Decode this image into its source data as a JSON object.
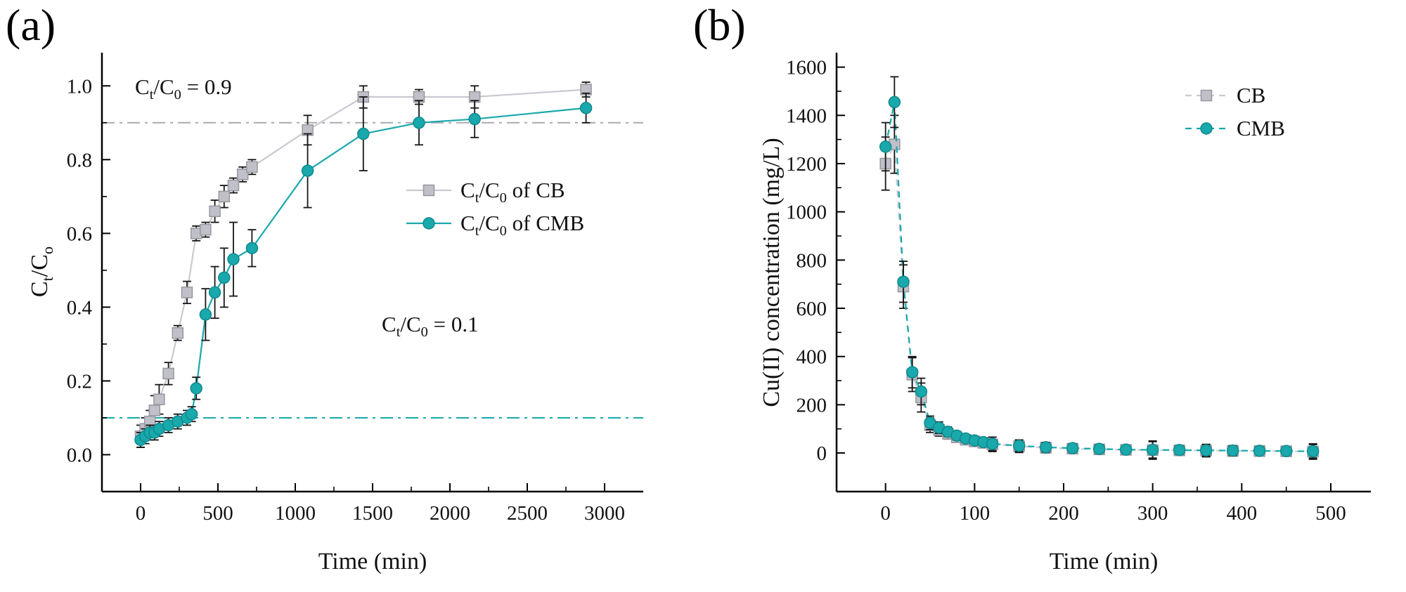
{
  "figure": {
    "panel_a_label": "(a)",
    "panel_b_label": "(b)"
  },
  "colors": {
    "cb_fill": "#c0c0c8",
    "cb_edge": "#97979f",
    "cb_line": "#c9c9d1",
    "cmb_fill": "#19a8ac",
    "cmb_edge": "#0e8a8e",
    "cmb_line": "#19a8ac",
    "error_bar": "#161616",
    "ref_gray": "#aaaab2",
    "ref_teal": "#19a8ac",
    "axis": "#000000"
  },
  "chart_data": [
    {
      "type": "line",
      "panel": "a",
      "title": "",
      "xlabel": "Time (min)",
      "ylabel": "C_t_/C_o_",
      "xlim": [
        -250,
        3250
      ],
      "ylim": [
        -0.1,
        1.09
      ],
      "xticks": [
        "0",
        "500",
        "1000",
        "1500",
        "2000",
        "2500",
        "3000"
      ],
      "yticks": [
        "0.0",
        "0.2",
        "0.4",
        "0.6",
        "0.8",
        "1.0"
      ],
      "grid": false,
      "legend_position": "center-right",
      "reference_lines": [
        {
          "y": 0.9,
          "label": "C_t_/C_0_ = 0.9",
          "color": "ref_gray"
        },
        {
          "y": 0.1,
          "label": "C_t_/C_0_ = 0.1",
          "color": "ref_teal"
        }
      ],
      "legend": [
        {
          "series": "CB",
          "label": "C_t_/C_0_ of CB"
        },
        {
          "series": "CMB",
          "label": "C_t_/C_0_ of CMB"
        }
      ],
      "series": [
        {
          "name": "CB",
          "marker": "square",
          "line_style": "solid",
          "x": [
            0,
            30,
            60,
            90,
            120,
            180,
            240,
            300,
            360,
            420,
            480,
            540,
            600,
            660,
            720,
            1080,
            1440,
            1800,
            2160,
            2880
          ],
          "y": [
            0.05,
            0.07,
            0.09,
            0.12,
            0.15,
            0.22,
            0.33,
            0.44,
            0.6,
            0.61,
            0.66,
            0.7,
            0.73,
            0.76,
            0.78,
            0.88,
            0.97,
            0.97,
            0.97,
            0.99
          ],
          "yerr": [
            0.03,
            0.03,
            0.03,
            0.04,
            0.04,
            0.03,
            0.02,
            0.03,
            0.02,
            0.02,
            0.03,
            0.03,
            0.02,
            0.02,
            0.02,
            0.04,
            0.03,
            0.02,
            0.03,
            0.02
          ]
        },
        {
          "name": "CMB",
          "marker": "circle",
          "line_style": "solid",
          "x": [
            0,
            30,
            60,
            90,
            120,
            180,
            240,
            300,
            330,
            360,
            420,
            480,
            540,
            600,
            720,
            1080,
            1440,
            1800,
            2160,
            2880
          ],
          "y": [
            0.04,
            0.05,
            0.06,
            0.06,
            0.07,
            0.08,
            0.09,
            0.1,
            0.11,
            0.18,
            0.38,
            0.44,
            0.48,
            0.53,
            0.56,
            0.77,
            0.87,
            0.9,
            0.91,
            0.94
          ],
          "yerr": [
            0.02,
            0.02,
            0.02,
            0.02,
            0.02,
            0.02,
            0.02,
            0.02,
            0.02,
            0.03,
            0.07,
            0.07,
            0.08,
            0.1,
            0.05,
            0.1,
            0.1,
            0.06,
            0.05,
            0.04
          ]
        }
      ]
    },
    {
      "type": "line",
      "panel": "b",
      "title": "",
      "xlabel": "Time (min)",
      "ylabel": "Cu(II) concentration (mg/L)",
      "xlim": [
        -55,
        545
      ],
      "ylim": [
        -160,
        1660
      ],
      "xticks": [
        "0",
        "100",
        "200",
        "300",
        "400",
        "500"
      ],
      "yticks": [
        "0",
        "200",
        "400",
        "600",
        "800",
        "1000",
        "1200",
        "1400",
        "1600"
      ],
      "grid": false,
      "legend_position": "top-right",
      "reference_lines": [],
      "legend": [
        {
          "series": "CB",
          "label": "CB"
        },
        {
          "series": "CMB",
          "label": "CMB"
        }
      ],
      "series": [
        {
          "name": "CB",
          "marker": "square",
          "line_style": "dashed",
          "x": [
            0,
            10,
            20,
            30,
            40,
            50,
            60,
            70,
            80,
            90,
            100,
            110,
            120,
            150,
            180,
            210,
            240,
            270,
            300,
            330,
            360,
            390,
            420,
            450,
            480
          ],
          "y": [
            1200,
            1280,
            690,
            325,
            230,
            115,
            95,
            80,
            65,
            55,
            48,
            42,
            36,
            28,
            22,
            18,
            15,
            13,
            12,
            11,
            10,
            9,
            8,
            7,
            6
          ],
          "yerr": [
            110,
            120,
            90,
            70,
            60,
            30,
            25,
            22,
            20,
            18,
            16,
            14,
            30,
            26,
            22,
            20,
            20,
            18,
            38,
            20,
            26,
            22,
            18,
            15,
            32
          ]
        },
        {
          "name": "CMB",
          "marker": "circle",
          "line_style": "dashed",
          "x": [
            0,
            10,
            20,
            30,
            40,
            50,
            60,
            70,
            80,
            90,
            100,
            110,
            120,
            150,
            180,
            210,
            240,
            270,
            300,
            330,
            360,
            390,
            420,
            450,
            480
          ],
          "y": [
            1270,
            1455,
            710,
            335,
            255,
            125,
            105,
            88,
            72,
            60,
            52,
            45,
            38,
            30,
            24,
            20,
            17,
            14,
            13,
            12,
            11,
            10,
            9,
            8,
            7
          ],
          "yerr": [
            100,
            105,
            85,
            65,
            55,
            28,
            24,
            20,
            18,
            16,
            15,
            13,
            28,
            24,
            20,
            18,
            18,
            16,
            34,
            18,
            24,
            20,
            16,
            14,
            28
          ]
        }
      ]
    }
  ]
}
